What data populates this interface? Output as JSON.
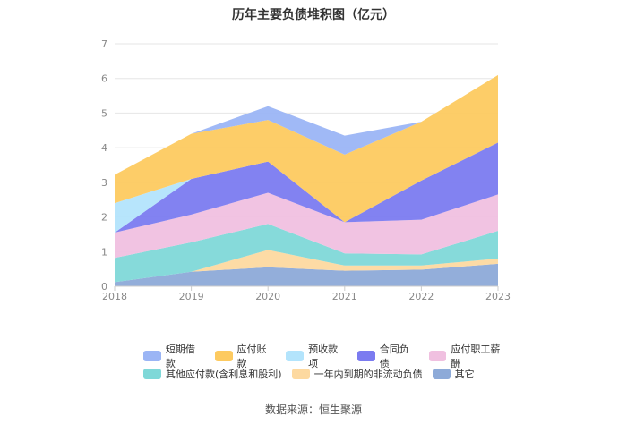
{
  "title": "历年主要负债堆积图（亿元）",
  "source": "数据来源：恒生聚源",
  "chart_data": {
    "type": "area",
    "stacked": true,
    "title": "历年主要负债堆积图（亿元）",
    "xlabel": "",
    "ylabel": "",
    "x": [
      "2018",
      "2019",
      "2020",
      "2021",
      "2022",
      "2023"
    ],
    "ylim": [
      0,
      7
    ],
    "yticks": [
      "0",
      "1",
      "2",
      "3",
      "4",
      "5",
      "6",
      "7"
    ],
    "grid": true,
    "legend_position": "bottom",
    "series": [
      {
        "name": "其它",
        "color": "#8daad8",
        "values": [
          0.12,
          0.42,
          0.55,
          0.45,
          0.48,
          0.65
        ]
      },
      {
        "name": "一年内到期的非流动负债",
        "color": "#fdd9a0",
        "values": [
          0.0,
          0.0,
          0.5,
          0.15,
          0.12,
          0.15
        ]
      },
      {
        "name": "其他应付款(含利息和股利)",
        "color": "#7fd8d8",
        "values": [
          0.7,
          0.85,
          0.75,
          0.35,
          0.32,
          0.8
        ]
      },
      {
        "name": "应付职工薪酬",
        "color": "#f0c0e0",
        "values": [
          0.73,
          0.8,
          0.9,
          0.9,
          1.0,
          1.05
        ]
      },
      {
        "name": "合同负债",
        "color": "#7b7bf0",
        "values": [
          0.0,
          1.03,
          0.9,
          0.0,
          1.13,
          1.5
        ]
      },
      {
        "name": "预收款项",
        "color": "#b3e4fc",
        "values": [
          0.85,
          0.0,
          0.0,
          0.0,
          0.0,
          0.0
        ]
      },
      {
        "name": "应付账款",
        "color": "#fdca60",
        "values": [
          0.82,
          1.3,
          1.2,
          1.95,
          1.7,
          1.95
        ]
      },
      {
        "name": "短期借款",
        "color": "#9bb5f5",
        "values": [
          0.0,
          0.0,
          0.4,
          0.55,
          0.0,
          0.0
        ]
      }
    ]
  },
  "legend_rows": [
    [
      {
        "label": "短期借款",
        "color": "#9bb5f5"
      },
      {
        "label": "应付账款",
        "color": "#fdca60"
      },
      {
        "label": "预收款项",
        "color": "#b3e4fc"
      },
      {
        "label": "合同负债",
        "color": "#7b7bf0"
      },
      {
        "label": "应付职工薪酬",
        "color": "#f0c0e0"
      }
    ],
    [
      {
        "label": "其他应付款(含利息和股利)",
        "color": "#7fd8d8"
      },
      {
        "label": "一年内到期的非流动负债",
        "color": "#fdd9a0"
      },
      {
        "label": "其它",
        "color": "#8daad8"
      }
    ]
  ]
}
